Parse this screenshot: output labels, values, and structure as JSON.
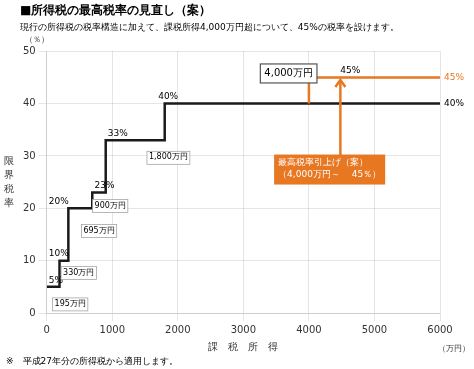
{
  "chart_data": {
    "type": "line",
    "title": "■所得税の最高税率の見直し（案）",
    "subtitle": "現行の所得税の税率構造に加えて、課税所得4,000万円超について、45%の税率を設けます。",
    "footnote": "※　平成27年分の所得税から適用します。",
    "xlabel": "課　税　所　得",
    "xunit": "（万円）",
    "ylabel": "限界税率",
    "yunit": "（％）",
    "xlim": [
      0,
      6000
    ],
    "ylim": [
      0,
      50
    ],
    "xticks": [
      0,
      1000,
      2000,
      3000,
      4000,
      5000,
      6000
    ],
    "yticks": [
      0,
      10,
      20,
      30,
      40,
      50
    ],
    "grid": true,
    "series": [
      {
        "x": [
          0,
          195,
          195,
          330,
          330,
          695,
          695,
          900,
          900,
          1800,
          1800,
          4000,
          4000,
          6000
        ],
        "values": [
          5,
          5,
          10,
          10,
          20,
          20,
          23,
          23,
          33,
          33,
          40,
          40,
          40,
          40
        ],
        "color": "#1a1a1a"
      },
      {
        "x": [
          4000,
          4000,
          6000
        ],
        "values": [
          40,
          45,
          45
        ],
        "color": "#E87722"
      }
    ],
    "rate_labels": [
      {
        "x": 30,
        "y": 5.4,
        "text": "5%",
        "color": "black"
      },
      {
        "x": 30,
        "y": 10.4,
        "text": "10%",
        "color": "black"
      },
      {
        "x": 30,
        "y": 20.4,
        "text": "20%",
        "color": "black"
      },
      {
        "x": 730,
        "y": 23.4,
        "text": "23%",
        "color": "black"
      },
      {
        "x": 930,
        "y": 33.4,
        "text": "33%",
        "color": "black"
      },
      {
        "x": 1700,
        "y": 40.4,
        "text": "40%",
        "color": "black"
      },
      {
        "x": 4480,
        "y": 45.4,
        "text": "45%",
        "color": "black"
      }
    ],
    "end_labels": [
      {
        "x": 6060,
        "y": 45.0,
        "text": "45%",
        "color": "#E87722"
      },
      {
        "x": 6060,
        "y": 40.0,
        "text": "40%",
        "color": "black"
      }
    ],
    "bracket_boxes": [
      {
        "x": 120,
        "y": 2.5,
        "text": "195万円"
      },
      {
        "x": 250,
        "y": 8.5,
        "text": "330万円"
      },
      {
        "x": 560,
        "y": 16.5,
        "text": "695万円"
      },
      {
        "x": 730,
        "y": 21.3,
        "text": "900万円"
      },
      {
        "x": 1560,
        "y": 30.5,
        "text": "1,800万円"
      }
    ],
    "top_box": {
      "x": 3320,
      "y": 46.8,
      "text": "4,000万円"
    },
    "orange_box": {
      "x": 3530,
      "y": 29.5,
      "text": "最高税率引上げ（案）\n（4,000万円～　 45％）",
      "color": "#E87722"
    },
    "arrow": {
      "x": 4480,
      "y_start": 29.5,
      "y_end": 44.5,
      "color": "#E87722"
    }
  }
}
